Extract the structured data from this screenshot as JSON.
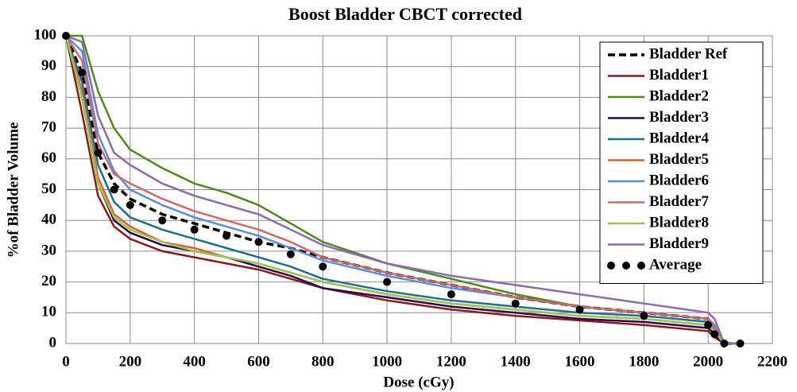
{
  "chart_data": {
    "type": "line",
    "title": "Boost Bladder CBCT corrected",
    "xlabel": "Dose (cGy)",
    "ylabel": "%of Bladder Volume",
    "x": [
      0,
      50,
      100,
      150,
      200,
      300,
      400,
      500,
      600,
      700,
      800,
      1000,
      1200,
      1400,
      1600,
      1800,
      2000,
      2020,
      2050,
      2100
    ],
    "xlim": [
      0,
      2200
    ],
    "xticks": [
      0,
      200,
      400,
      600,
      800,
      1000,
      1200,
      1400,
      1600,
      1800,
      2000,
      2200
    ],
    "ylim": [
      0,
      100
    ],
    "yticks": [
      0,
      10,
      20,
      30,
      40,
      50,
      60,
      70,
      80,
      90,
      100
    ],
    "grid": true,
    "legend": "upper right",
    "series": [
      {
        "name": "Bladder Ref",
        "color": "#000000",
        "style": "dashed",
        "values": [
          100,
          88,
          62,
          52,
          47,
          42,
          39,
          36,
          33,
          31,
          28,
          23,
          19,
          15,
          12,
          10,
          8,
          5,
          0,
          0
        ]
      },
      {
        "name": "Bladder1",
        "color": "#8b1a1a",
        "style": "solid",
        "values": [
          100,
          75,
          48,
          38,
          34,
          30,
          28,
          26,
          24,
          21,
          18,
          14,
          11,
          9,
          7.5,
          6,
          4,
          2,
          0,
          0
        ]
      },
      {
        "name": "Bladder2",
        "color": "#4e8a1e",
        "style": "solid",
        "values": [
          100,
          100,
          82,
          70,
          63,
          57,
          52,
          49,
          45,
          39,
          33,
          26,
          21,
          16,
          12,
          10,
          8,
          6,
          0,
          0
        ]
      },
      {
        "name": "Bladder3",
        "color": "#2a0a4a",
        "style": "solid",
        "values": [
          100,
          80,
          52,
          40,
          36,
          32,
          30,
          28,
          25,
          22,
          18,
          15,
          12,
          10,
          8,
          7,
          5,
          3,
          0,
          0
        ]
      },
      {
        "name": "Bladder4",
        "color": "#1f6e8c",
        "style": "solid",
        "values": [
          100,
          85,
          58,
          46,
          41,
          37,
          34,
          31,
          28,
          25,
          21,
          17,
          14,
          12,
          10,
          9,
          7,
          5,
          0,
          0
        ]
      },
      {
        "name": "Bladder5",
        "color": "#e0602a",
        "style": "solid",
        "values": [
          100,
          82,
          54,
          42,
          38,
          33,
          31,
          28,
          26,
          23,
          20,
          16,
          13,
          11,
          9,
          8,
          6,
          4,
          0,
          0
        ]
      },
      {
        "name": "Bladder6",
        "color": "#5b8ed6",
        "style": "solid",
        "values": [
          100,
          95,
          68,
          56,
          50,
          45,
          41,
          38,
          35,
          31,
          27,
          22,
          18,
          15,
          12,
          10,
          8,
          6,
          0,
          0
        ]
      },
      {
        "name": "Bladder7",
        "color": "#d06a6a",
        "style": "solid",
        "values": [
          100,
          92,
          65,
          55,
          52,
          47,
          43,
          40,
          37,
          33,
          28,
          23,
          19,
          15,
          12,
          10,
          8,
          5,
          0,
          0
        ]
      },
      {
        "name": "Bladder8",
        "color": "#9cc45a",
        "style": "solid",
        "values": [
          100,
          80,
          52,
          41,
          37,
          33,
          30,
          28,
          26,
          23,
          20,
          16,
          13,
          11,
          9,
          8,
          6,
          4,
          0,
          0
        ]
      },
      {
        "name": "Bladder9",
        "color": "#8c6bb1",
        "style": "solid",
        "values": [
          100,
          98,
          74,
          62,
          58,
          52,
          48,
          45,
          42,
          37,
          32,
          26,
          22,
          19,
          16,
          13,
          10,
          8,
          0,
          0
        ]
      },
      {
        "name": "Average",
        "color": "#000000",
        "style": "dots",
        "values": [
          100,
          88,
          62,
          50,
          45,
          40,
          37,
          35,
          33,
          29,
          25,
          20,
          16,
          13,
          11,
          9,
          6,
          3,
          0,
          0
        ]
      }
    ]
  }
}
